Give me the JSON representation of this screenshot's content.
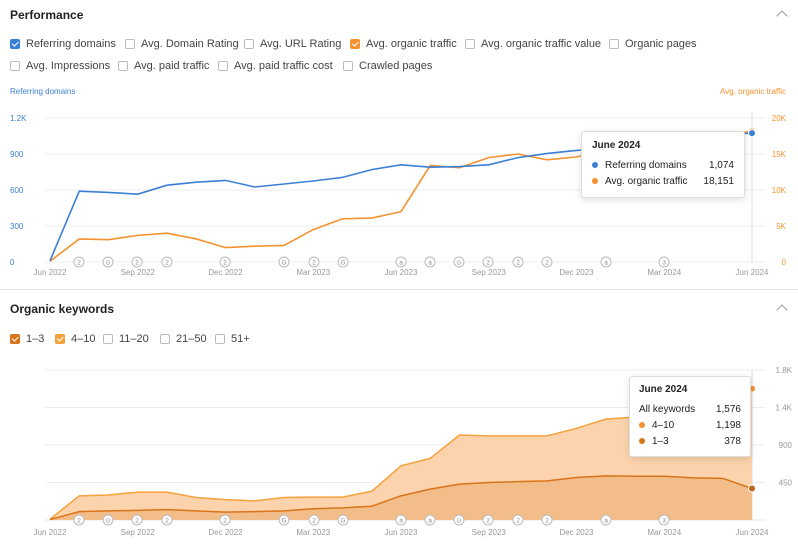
{
  "performance": {
    "title": "Performance",
    "checkboxes": [
      {
        "label": "Referring domains",
        "checked": true,
        "color": "#3b7fd6"
      },
      {
        "label": "Avg. Domain Rating",
        "checked": false
      },
      {
        "label": "Avg. URL Rating",
        "checked": false
      },
      {
        "label": "Avg. organic traffic",
        "checked": true,
        "color": "#f5922f"
      },
      {
        "label": "Avg. organic traffic value",
        "checked": false
      },
      {
        "label": "Organic pages",
        "checked": false
      },
      {
        "label": "Avg. Impressions",
        "checked": false
      },
      {
        "label": "Avg. paid traffic",
        "checked": false
      },
      {
        "label": "Avg. paid traffic cost",
        "checked": false
      },
      {
        "label": "Crawled pages",
        "checked": false
      }
    ],
    "left_axis_title": "Referring domains",
    "right_axis_title": "Avg. organic traffic",
    "left_ticks": [
      "1.2K",
      "900",
      "600",
      "300",
      "0"
    ],
    "right_ticks": [
      "20K",
      "15K",
      "10K",
      "5K",
      "0"
    ],
    "x_ticks": [
      "Jun 2022",
      "Sep 2022",
      "Dec 2022",
      "Mar 2023",
      "Jun 2023",
      "Sep 2023",
      "Dec 2023",
      "Mar 2024",
      "Jun 2024"
    ],
    "annotations": [
      "2",
      "⊙",
      "2",
      "2",
      "2",
      "G",
      "2",
      "G",
      "a",
      "a",
      "⊙",
      "2",
      "2",
      "2",
      "a",
      "3"
    ],
    "tooltip": {
      "title": "June 2024",
      "rows": [
        {
          "label": "Referring domains",
          "value": "1,074",
          "color": "#3b7fd6"
        },
        {
          "label": "Avg. organic traffic",
          "value": "18,151",
          "color": "#f5922f"
        }
      ]
    }
  },
  "keywords": {
    "title": "Organic keywords",
    "checkboxes": [
      {
        "label": "1–3",
        "checked": true,
        "color": "#d8741a"
      },
      {
        "label": "4–10",
        "checked": true,
        "color": "#f5a13c"
      },
      {
        "label": "11–20",
        "checked": false
      },
      {
        "label": "21–50",
        "checked": false
      },
      {
        "label": "51+",
        "checked": false
      }
    ],
    "right_ticks": [
      "1.8K",
      "1.4K",
      "900",
      "450"
    ],
    "x_ticks": [
      "Jun 2022",
      "Sep 2022",
      "Dec 2022",
      "Mar 2023",
      "Jun 2023",
      "Sep 2023",
      "Dec 2023",
      "Mar 2024",
      "Jun 2024"
    ],
    "annotations": [
      "2",
      "⊙",
      "2",
      "2",
      "2",
      "G",
      "2",
      "G",
      "a",
      "a",
      "⊙",
      "2",
      "2",
      "2",
      "a",
      "3"
    ],
    "tooltip": {
      "title": "June 2024",
      "rows": [
        {
          "label": "All keywords",
          "value": "1,576",
          "color": ""
        },
        {
          "label": "4–10",
          "value": "1,198",
          "color": "#f5922f"
        },
        {
          "label": "1–3",
          "value": "378",
          "color": "#d8741a"
        }
      ]
    }
  },
  "chart_data": [
    {
      "type": "line",
      "x": [
        "Jun 2022",
        "Jul 2022",
        "Aug 2022",
        "Sep 2022",
        "Oct 2022",
        "Nov 2022",
        "Dec 2022",
        "Jan 2023",
        "Feb 2023",
        "Mar 2023",
        "Apr 2023",
        "May 2023",
        "Jun 2023",
        "Jul 2023",
        "Aug 2023",
        "Sep 2023",
        "Oct 2023",
        "Nov 2023",
        "Dec 2023",
        "Jan 2024",
        "Feb 2024",
        "Mar 2024",
        "Apr 2024",
        "May 2024",
        "Jun 2024"
      ],
      "series": [
        {
          "name": "Referring domains",
          "axis": "left",
          "color": "#3b7fd6",
          "values": [
            10,
            590,
            580,
            565,
            640,
            665,
            680,
            625,
            650,
            675,
            705,
            770,
            810,
            790,
            795,
            810,
            870,
            905,
            930,
            945,
            970,
            990,
            1035,
            1060,
            1074
          ]
        },
        {
          "name": "Avg. organic traffic",
          "axis": "right",
          "color": "#f5922f",
          "values": [
            100,
            3200,
            3100,
            3700,
            4000,
            3200,
            2000,
            2200,
            2300,
            4500,
            6000,
            6100,
            7000,
            13400,
            13100,
            14500,
            15000,
            14200,
            14600,
            15400,
            15300,
            15900,
            16900,
            17600,
            18151
          ]
        }
      ],
      "y_left_range": [
        0,
        1200
      ],
      "y_right_range": [
        0,
        20000
      ],
      "ylabel_left": "Referring domains",
      "ylabel_right": "Avg. organic traffic",
      "grid": true
    },
    {
      "type": "area",
      "x": [
        "Jun 2022",
        "Jul 2022",
        "Aug 2022",
        "Sep 2022",
        "Oct 2022",
        "Nov 2022",
        "Dec 2022",
        "Jan 2023",
        "Feb 2023",
        "Mar 2023",
        "Apr 2023",
        "May 2023",
        "Jun 2023",
        "Jul 2023",
        "Aug 2023",
        "Sep 2023",
        "Oct 2023",
        "Nov 2023",
        "Dec 2023",
        "Jan 2024",
        "Feb 2024",
        "Mar 2024",
        "Apr 2024",
        "May 2024",
        "Jun 2024"
      ],
      "series": [
        {
          "name": "1–3",
          "color": "#d8741a",
          "values": [
            5,
            100,
            110,
            115,
            125,
            110,
            95,
            100,
            110,
            135,
            145,
            165,
            290,
            370,
            430,
            450,
            460,
            470,
            510,
            530,
            525,
            525,
            505,
            500,
            378
          ]
        },
        {
          "name": "4–10",
          "color": "#f5a13c",
          "values": [
            5,
            190,
            190,
            220,
            210,
            160,
            150,
            130,
            160,
            140,
            130,
            180,
            360,
            370,
            590,
            560,
            550,
            540,
            590,
            680,
            710,
            720,
            725,
            840,
            1198
          ]
        }
      ],
      "stacked": true,
      "y_range": [
        0,
        1800
      ],
      "grid": true
    }
  ]
}
